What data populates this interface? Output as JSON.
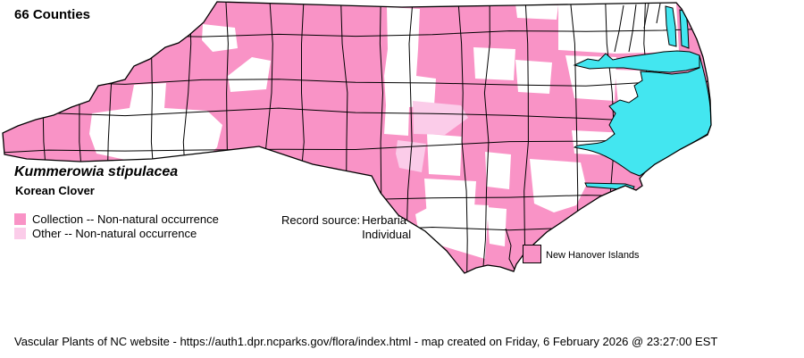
{
  "header": {
    "county_count": "66 Counties"
  },
  "species": {
    "scientific_name": "Kummerowia stipulacea",
    "common_name": "Korean Clover"
  },
  "legend": {
    "items": [
      {
        "key": "collection",
        "label": "Collection -- Non-natural occurrence"
      },
      {
        "key": "other",
        "label": "Other -- Non-natural occurrence"
      }
    ]
  },
  "record_source": {
    "label": "Record source:",
    "values": [
      "Herbaria",
      "Individual"
    ]
  },
  "map": {
    "island_label": "New Hanover Islands",
    "colors": {
      "collection": "#F993C6",
      "other": "#FBCCE9",
      "water": "#43E6F0",
      "empty": "#FFFFFF",
      "border": "#000000"
    }
  },
  "footer": {
    "text": "Vascular Plants of NC website - https://auth1.dpr.ncparks.gov/flora/index.html - map created on Friday, 6 February 2026 @ 23:27:00 EST"
  }
}
